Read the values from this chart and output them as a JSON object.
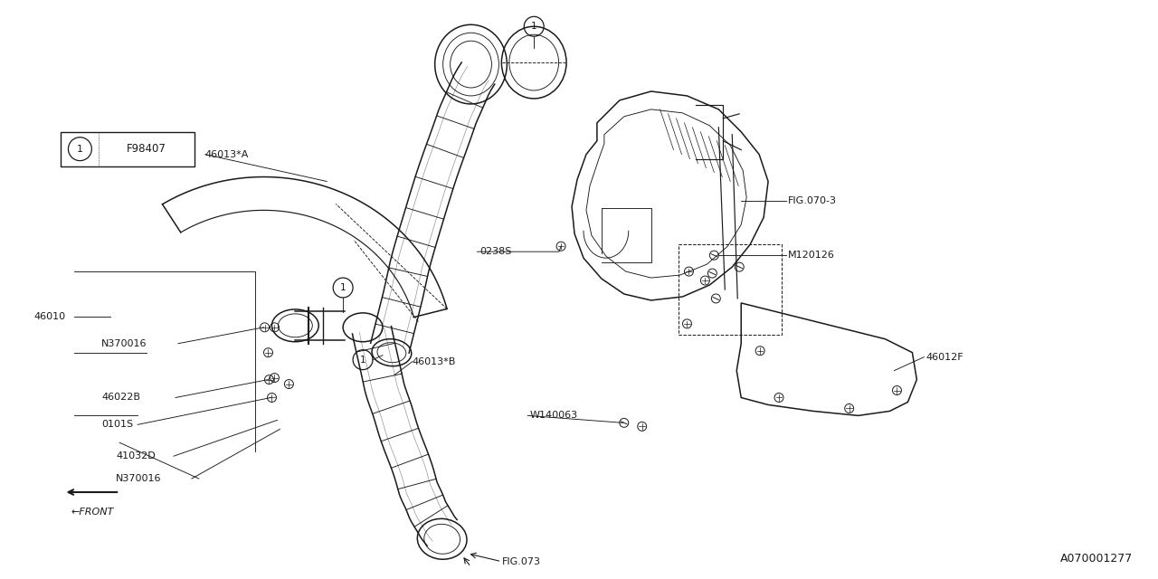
{
  "bg_color": "#ffffff",
  "line_color": "#1a1a1a",
  "fig_id": "A070001277",
  "ref_label": "1",
  "ref_code": "F98407",
  "lw_main": 1.1,
  "lw_thin": 0.65,
  "lw_med": 0.85
}
